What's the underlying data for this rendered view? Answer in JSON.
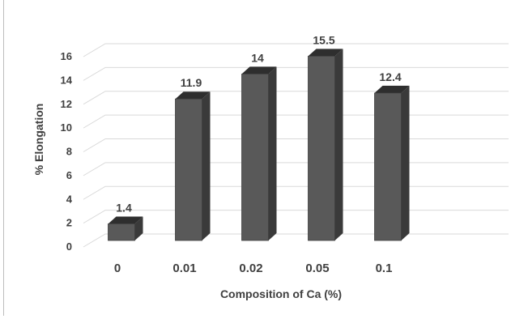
{
  "chart_data": {
    "type": "bar",
    "title": "",
    "xlabel": "Composition of Ca (%)",
    "ylabel": "% Elongation",
    "categories": [
      "0",
      "0.01",
      "0.02",
      "0.05",
      "0.1"
    ],
    "values": [
      1.4,
      11.9,
      14,
      15.5,
      12.4
    ],
    "data_labels": [
      "1.4",
      "11.9",
      "14",
      "15.5",
      "12.4"
    ],
    "y_ticks": [
      "0",
      "2",
      "4",
      "6",
      "8",
      "10",
      "12",
      "14",
      "16"
    ],
    "ylim": [
      0,
      16
    ],
    "grid": true,
    "legend": "none",
    "bar_color": "#595959",
    "bar_side_color": "#3a3a3a",
    "bar_top_color": "#2e2e2e"
  }
}
